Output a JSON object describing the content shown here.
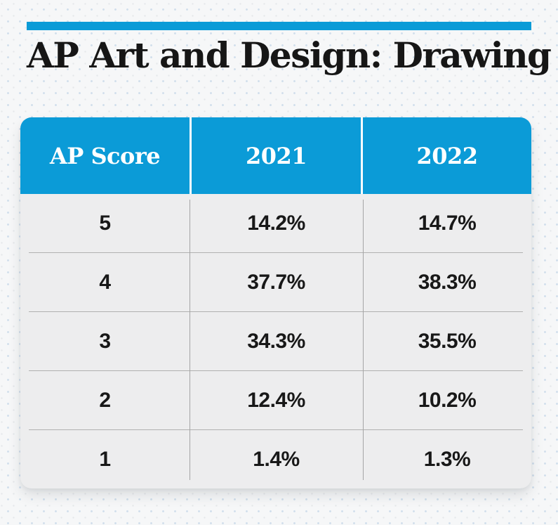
{
  "title": {
    "bold_prefix": "AP",
    "rest": " Art and Design: Drawing"
  },
  "colors": {
    "accent_blue": "#0b9bd7",
    "page_background": "#f6f7f8",
    "row_background": "#ededee",
    "divider_gray": "#b0b0b0",
    "header_text": "#ffffff",
    "body_text": "#181818"
  },
  "table": {
    "headers": [
      "AP Score",
      "2021",
      "2022"
    ],
    "rows": [
      {
        "score": "5",
        "v2021": "14.2%",
        "v2022": "14.7%"
      },
      {
        "score": "4",
        "v2021": "37.7%",
        "v2022": "38.3%"
      },
      {
        "score": "3",
        "v2021": "34.3%",
        "v2022": "35.5%"
      },
      {
        "score": "2",
        "v2021": "12.4%",
        "v2022": "10.2%"
      },
      {
        "score": "1",
        "v2021": "1.4%",
        "v2022": "1.3%"
      }
    ]
  },
  "chart_data": {
    "type": "table",
    "title": "AP Art and Design: Drawing",
    "columns": [
      "AP Score",
      "2021",
      "2022"
    ],
    "categories": [
      "5",
      "4",
      "3",
      "2",
      "1"
    ],
    "series": [
      {
        "name": "2021",
        "values": [
          14.2,
          37.7,
          34.3,
          12.4,
          1.4
        ]
      },
      {
        "name": "2022",
        "values": [
          14.7,
          38.3,
          35.5,
          10.2,
          1.3
        ]
      }
    ],
    "units": "percent",
    "layout": "blue header row, light gray body rows, thin gray grid dividers"
  }
}
